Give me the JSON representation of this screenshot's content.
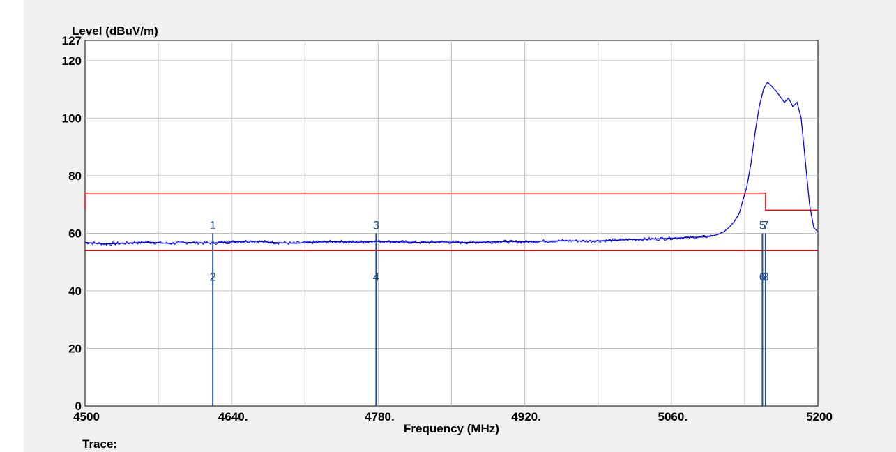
{
  "chart_data": {
    "type": "line",
    "ylabel": "Level (dBuV/m)",
    "xlabel": "Frequency (MHz)",
    "xlim": [
      4500,
      5200
    ],
    "ylim": [
      0,
      127
    ],
    "x_ticks": [
      {
        "value": 4500,
        "label": "4500"
      },
      {
        "value": 4640,
        "label": "4640."
      },
      {
        "value": 4780,
        "label": "4780."
      },
      {
        "value": 4920,
        "label": "4920."
      },
      {
        "value": 5060,
        "label": "5060."
      },
      {
        "value": 5200,
        "label": "5200"
      }
    ],
    "y_ticks": [
      {
        "value": 0,
        "label": "0"
      },
      {
        "value": 20,
        "label": "20"
      },
      {
        "value": 40,
        "label": "40"
      },
      {
        "value": 60,
        "label": "60"
      },
      {
        "value": 80,
        "label": "80"
      },
      {
        "value": 100,
        "label": "100"
      },
      {
        "value": 120,
        "label": "120"
      },
      {
        "value": 127,
        "label": "127"
      }
    ],
    "x_grid": [
      4570,
      4640,
      4710,
      4780,
      4850,
      4920,
      4990,
      5060,
      5130
    ],
    "y_grid": [
      20,
      40,
      60,
      80,
      100,
      120
    ],
    "grid": true,
    "series": [
      {
        "color": "#0000ff",
        "x": [
          4500,
          4520,
          4540,
          4560,
          4580,
          4600,
          4620,
          4640,
          4660,
          4680,
          4700,
          4720,
          4740,
          4760,
          4780,
          4800,
          4820,
          4840,
          4860,
          4880,
          4900,
          4920,
          4940,
          4960,
          4980,
          5000,
          5020,
          5040,
          5060,
          5080,
          5090,
          5100,
          5104,
          5110,
          5115,
          5120,
          5125,
          5128,
          5132,
          5136,
          5140,
          5144,
          5148,
          5152,
          5156,
          5160,
          5164,
          5168,
          5172,
          5176,
          5180,
          5184,
          5188,
          5192,
          5196,
          5200
        ],
        "y": [
          56.8,
          56.3,
          56.6,
          56.9,
          56.5,
          56.8,
          56.6,
          57.0,
          57.3,
          56.8,
          56.5,
          56.9,
          57.1,
          56.9,
          57.2,
          57.0,
          56.8,
          57.0,
          56.8,
          56.9,
          57.1,
          57.0,
          57.3,
          57.4,
          57.3,
          57.5,
          57.8,
          58.0,
          58.3,
          58.6,
          58.7,
          59.2,
          59.5,
          60.5,
          62.0,
          64.0,
          67.0,
          71.0,
          76.0,
          84.0,
          95.0,
          104.0,
          110.0,
          112.5,
          111.0,
          109.5,
          107.5,
          105.5,
          107.0,
          104.0,
          105.5,
          100.0,
          85.0,
          70.0,
          62.0,
          60.5
        ]
      },
      {
        "color": "#ff0000",
        "x": [
          4500,
          4500,
          5150,
          5150,
          5200
        ],
        "y": [
          68,
          74,
          74,
          68,
          68
        ]
      },
      {
        "color": "#ff0000",
        "x": [
          4500,
          5200
        ],
        "y": [
          54,
          54
        ]
      }
    ],
    "markers": [
      {
        "x": 4622,
        "label_top": "1",
        "label_bottom": "2"
      },
      {
        "x": 4778,
        "label_top": "3",
        "label_bottom": "4"
      },
      {
        "x": 5147,
        "label_top": "5",
        "label_bottom": "6"
      },
      {
        "x": 5150,
        "label_top": "7",
        "label_bottom": "8"
      }
    ],
    "footer_label": "Trace:"
  }
}
